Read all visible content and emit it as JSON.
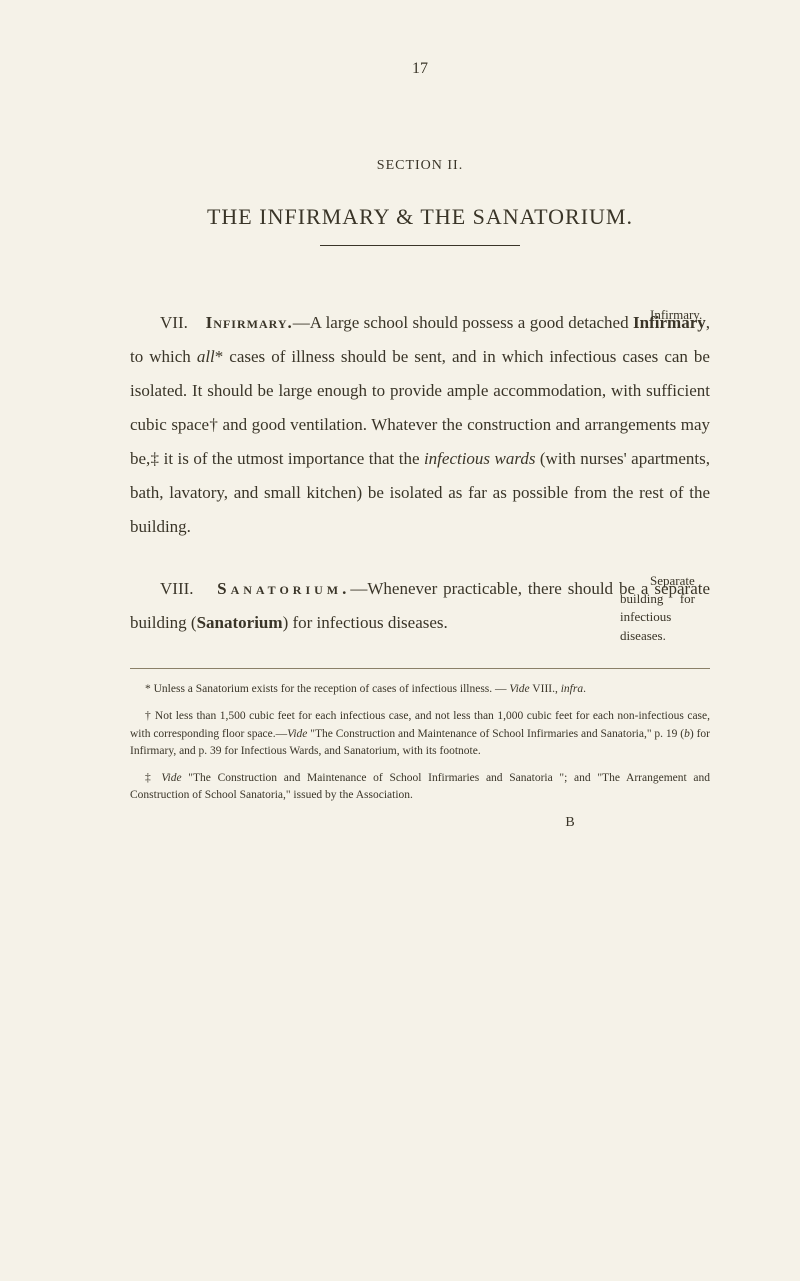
{
  "page_number": "17",
  "section_label": "SECTION II.",
  "main_title": "THE INFIRMARY & THE SANATORIUM.",
  "paragraphs": {
    "p1": {
      "roman": "VII.",
      "heading": "Infirmary.",
      "text_parts": {
        "t1": "—A large school should possess a good detached ",
        "t2": "Infirmary",
        "t3": ", to which ",
        "t4": "all",
        "t5": "* cases of illness should be sent, and in which infectious cases can be isolated. It should be large enough to provide ample accommodation, with sufficient cubic space† and good ventilation. Whatever the construction and arrangements may be,‡ it is of the utmost importance that the ",
        "t6": "infectious wards",
        "t7": " (with nurses' apartments, bath, lavatory, and small kitchen) be isolated as far as possible from the rest of the building."
      },
      "margin_note": "Infirmary."
    },
    "p2": {
      "roman": "VIII.",
      "heading": "Sanatorium.",
      "text_parts": {
        "t1": "—Whenever practicable, there should be a separate building (",
        "t2": "Sanatorium",
        "t3": ") for infectious diseases."
      },
      "margin_note": "Separate building for infectious diseases."
    }
  },
  "footnotes": {
    "f1": {
      "marker": "*",
      "text_parts": {
        "t1": " Unless a Sanatorium exists for the reception of cases of infectious illness. — ",
        "t2": "Vide",
        "t3": " VIII., ",
        "t4": "infra",
        "t5": "."
      }
    },
    "f2": {
      "marker": "†",
      "text_parts": {
        "t1": " Not less than 1,500 cubic feet for each infectious case, and not less than 1,000 cubic feet for each non-infectious case, with corresponding floor space.—",
        "t2": "Vide",
        "t3": " \"The Construction and Maintenance of School Infirmaries and Sanatoria,\" p. 19 (",
        "t4": "b",
        "t5": ") for Infirmary, and p. 39 for Infectious Wards, and Sanatorium, with its footnote."
      }
    },
    "f3": {
      "marker": "‡",
      "text_parts": {
        "t1": " ",
        "t2": "Vide",
        "t3": " \"The Construction and Maintenance of School Infirmaries and Sanatoria \"; and \"The Arrangement and Construction of School Sanatoria,\" issued by the Association."
      }
    }
  },
  "signature_mark": "B"
}
